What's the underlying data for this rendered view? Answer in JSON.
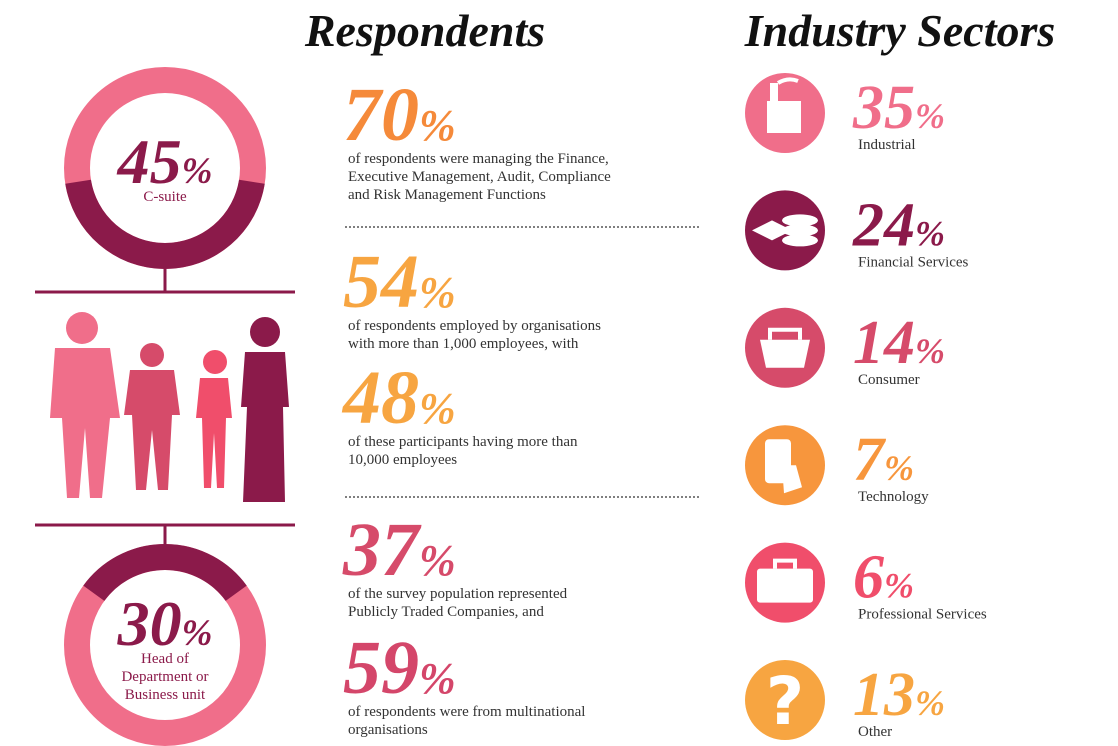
{
  "titles": {
    "respondents": "Respondents",
    "industry": "Industry Sectors"
  },
  "roles": [
    {
      "value": 45,
      "unit": "%",
      "lines": [
        "C-suite"
      ]
    },
    {
      "value": 30,
      "unit": "%",
      "lines": [
        "Head of",
        "Department or",
        "Business unit"
      ]
    }
  ],
  "respondents": [
    {
      "value": 70,
      "unit": "%",
      "lines": [
        "of respondents were managing the Finance,",
        "Executive Management, Audit, Compliance",
        "and Risk Management Functions"
      ]
    },
    {
      "value": 54,
      "unit": "%",
      "lines": [
        "of respondents employed by organisations",
        "with more than 1,000 employees, with"
      ]
    },
    {
      "value": 48,
      "unit": "%",
      "lines": [
        "of these participants having more than",
        "10,000 employees"
      ]
    },
    {
      "value": 37,
      "unit": "%",
      "lines": [
        "of the survey population represented",
        "Publicly Traded Companies, and"
      ]
    },
    {
      "value": 59,
      "unit": "%",
      "lines": [
        "of respondents were from multinational",
        "organisations"
      ]
    }
  ],
  "sectors": [
    {
      "value": 35,
      "unit": "%",
      "label": "Industrial"
    },
    {
      "value": 24,
      "unit": "%",
      "label": "Financial Services"
    },
    {
      "value": 14,
      "unit": "%",
      "label": "Consumer"
    },
    {
      "value": 7,
      "unit": "%",
      "label": "Technology"
    },
    {
      "value": 6,
      "unit": "%",
      "label": "Professional Services"
    },
    {
      "value": 13,
      "unit": "%",
      "label": "Other"
    }
  ]
}
